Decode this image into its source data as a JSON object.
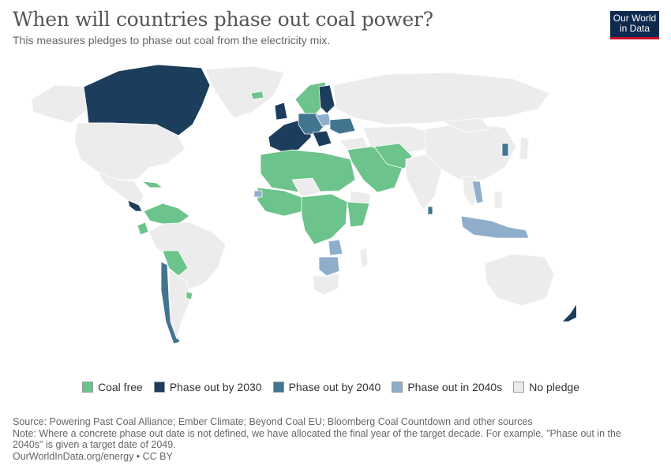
{
  "title": "When will countries phase out coal power?",
  "subtitle": "This measures pledges to phase out coal from the electricity mix.",
  "logo": {
    "line1": "Our World",
    "line2": "in Data"
  },
  "colors": {
    "coal_free": "#6cc38c",
    "phase_2030": "#1d3d5c",
    "phase_2040": "#41758f",
    "phase_2040s": "#8eaecb",
    "no_pledge": "#ececec",
    "ocean": "#ffffff",
    "border": "#ffffff"
  },
  "legend": [
    {
      "label": "Coal free",
      "color": "#6cc38c"
    },
    {
      "label": "Phase out by 2030",
      "color": "#1d3d5c"
    },
    {
      "label": "Phase out by 2040",
      "color": "#41758f"
    },
    {
      "label": "Phase out in 2040s",
      "color": "#8eaecb"
    },
    {
      "label": "No pledge",
      "color": "#ececec"
    }
  ],
  "footer": {
    "source": "Source: Powering Past Coal Alliance; Ember Climate; Beyond Coal EU; Bloomberg Coal Countdown and other sources",
    "note_line1": "Note: Where a concrete phase out date is not defined, we have allocated the final year of the target decade. For example, \"Phase out in the",
    "note_line2": "2040s\" is given a target date of 2049.",
    "credit": "OurWorldInData.org/energy • CC BY"
  }
}
